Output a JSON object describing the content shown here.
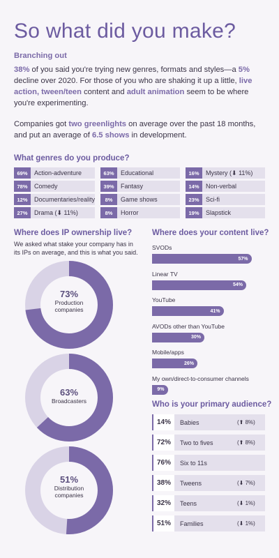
{
  "title": "So what did you make?",
  "intro": {
    "subhead": "Branching out",
    "p1": {
      "pct1": "38%",
      "t1": " of you said you're trying new genres, formats and styles—a ",
      "pct2": "5%",
      "t2": " decline over 2020. For those of you who are shaking it up a little, ",
      "hl1": "live action, tween/teen",
      "t3": " content and ",
      "hl2": "adult animation",
      "t4": " seem to be where you're experimenting."
    },
    "p2": {
      "t1": "Companies got ",
      "hl1": "two greenlights",
      "t2": " on average over the past 18 months, and put an average of ",
      "hl2": "6.5 shows",
      "t3": " in development."
    }
  },
  "genres": {
    "heading": "What genres do you produce?",
    "columns": [
      [
        {
          "pct": "69%",
          "name": "Action-adventure"
        },
        {
          "pct": "78%",
          "name": "Comedy"
        },
        {
          "pct": "12%",
          "name": "Documentaries/reality"
        },
        {
          "pct": "27%",
          "name": "Drama (⬇ 11%)"
        }
      ],
      [
        {
          "pct": "63%",
          "name": "Educational"
        },
        {
          "pct": "39%",
          "name": "Fantasy"
        },
        {
          "pct": "8%",
          "name": "Game shows"
        },
        {
          "pct": "8%",
          "name": "Horror"
        }
      ],
      [
        {
          "pct": "16%",
          "name": "Mystery (⬇ 11%)"
        },
        {
          "pct": "14%",
          "name": "Non-verbal"
        },
        {
          "pct": "23%",
          "name": "Sci-fi"
        },
        {
          "pct": "19%",
          "name": "Slapstick"
        }
      ]
    ]
  },
  "ip": {
    "heading": "Where does IP ownership live?",
    "description": "We asked what stake your company has in its IPs on average, and this is what you said.",
    "donuts": [
      {
        "value": 73,
        "pct": "73%",
        "label": "Production companies"
      },
      {
        "value": 63,
        "pct": "63%",
        "label": "Broadcasters"
      },
      {
        "value": 51,
        "pct": "51%",
        "label": "Distribution companies"
      }
    ]
  },
  "content": {
    "heading": "Where does your content live?",
    "items": [
      {
        "label": "SVODs",
        "value": 57,
        "pct": "57%"
      },
      {
        "label": "Linear TV",
        "value": 54,
        "pct": "54%"
      },
      {
        "label": "YouTube",
        "value": 41,
        "pct": "41%"
      },
      {
        "label": "AVODs other than YouTube",
        "value": 30,
        "pct": "30%"
      },
      {
        "label": "Mobile/apps",
        "value": 26,
        "pct": "26%"
      },
      {
        "label": "My own/direct-to-consumer channels",
        "value": 9,
        "pct": "9%"
      }
    ]
  },
  "audience": {
    "heading": "Who is your primary audience?",
    "rows": [
      {
        "pct": "14%",
        "name": "Babies",
        "change": "(⬆ 8%)"
      },
      {
        "pct": "72%",
        "name": "Two to fives",
        "change": "(⬆ 8%)"
      },
      {
        "pct": "76%",
        "name": "Six to 11s",
        "change": ""
      },
      {
        "pct": "38%",
        "name": "Tweens",
        "change": "(⬇ 7%)"
      },
      {
        "pct": "32%",
        "name": "Teens",
        "change": "(⬇ 1%)"
      },
      {
        "pct": "51%",
        "name": "Families",
        "change": "(⬇ 1%)"
      }
    ]
  },
  "colors": {
    "accent": "#7b6aa8",
    "light": "#d9d3e6",
    "background": "#f7f5f9"
  }
}
